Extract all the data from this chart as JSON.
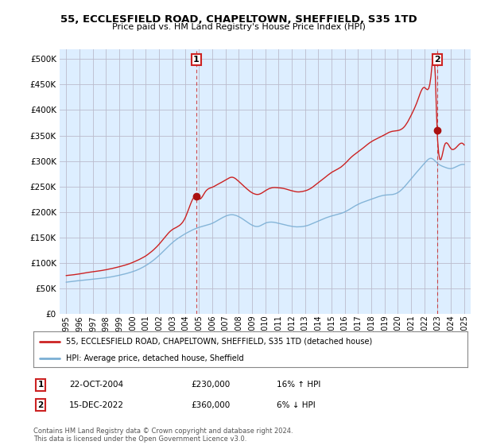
{
  "title": "55, ECCLESFIELD ROAD, CHAPELTOWN, SHEFFIELD, S35 1TD",
  "subtitle": "Price paid vs. HM Land Registry's House Price Index (HPI)",
  "legend_line1": "55, ECCLESFIELD ROAD, CHAPELTOWN, SHEFFIELD, S35 1TD (detached house)",
  "legend_line2": "HPI: Average price, detached house, Sheffield",
  "annotation1_date": "22-OCT-2004",
  "annotation1_price": "£230,000",
  "annotation1_hpi": "16% ↑ HPI",
  "annotation2_date": "15-DEC-2022",
  "annotation2_price": "£360,000",
  "annotation2_hpi": "6% ↓ HPI",
  "footer": "Contains HM Land Registry data © Crown copyright and database right 2024.\nThis data is licensed under the Open Government Licence v3.0.",
  "hpi_color": "#7bafd4",
  "price_color": "#cc2222",
  "marker_color": "#aa1111",
  "chart_bg": "#ddeeff",
  "ylim": [
    0,
    520000
  ],
  "yticks": [
    0,
    50000,
    100000,
    150000,
    200000,
    250000,
    300000,
    350000,
    400000,
    450000,
    500000
  ],
  "background_color": "#ffffff",
  "grid_color": "#bbbbcc",
  "sale1_x": 2004.81,
  "sale1_y": 230000,
  "sale2_x": 2022.96,
  "sale2_y": 360000,
  "xlim_left": 1994.5,
  "xlim_right": 2025.5,
  "xtick_years": [
    "1995",
    "1996",
    "1997",
    "1998",
    "1999",
    "2000",
    "2001",
    "2002",
    "2003",
    "2004",
    "2005",
    "2006",
    "2007",
    "2008",
    "2009",
    "2010",
    "2011",
    "2012",
    "2013",
    "2014",
    "2015",
    "2016",
    "2017",
    "2018",
    "2019",
    "2020",
    "2021",
    "2022",
    "2023",
    "2024",
    "2025"
  ]
}
